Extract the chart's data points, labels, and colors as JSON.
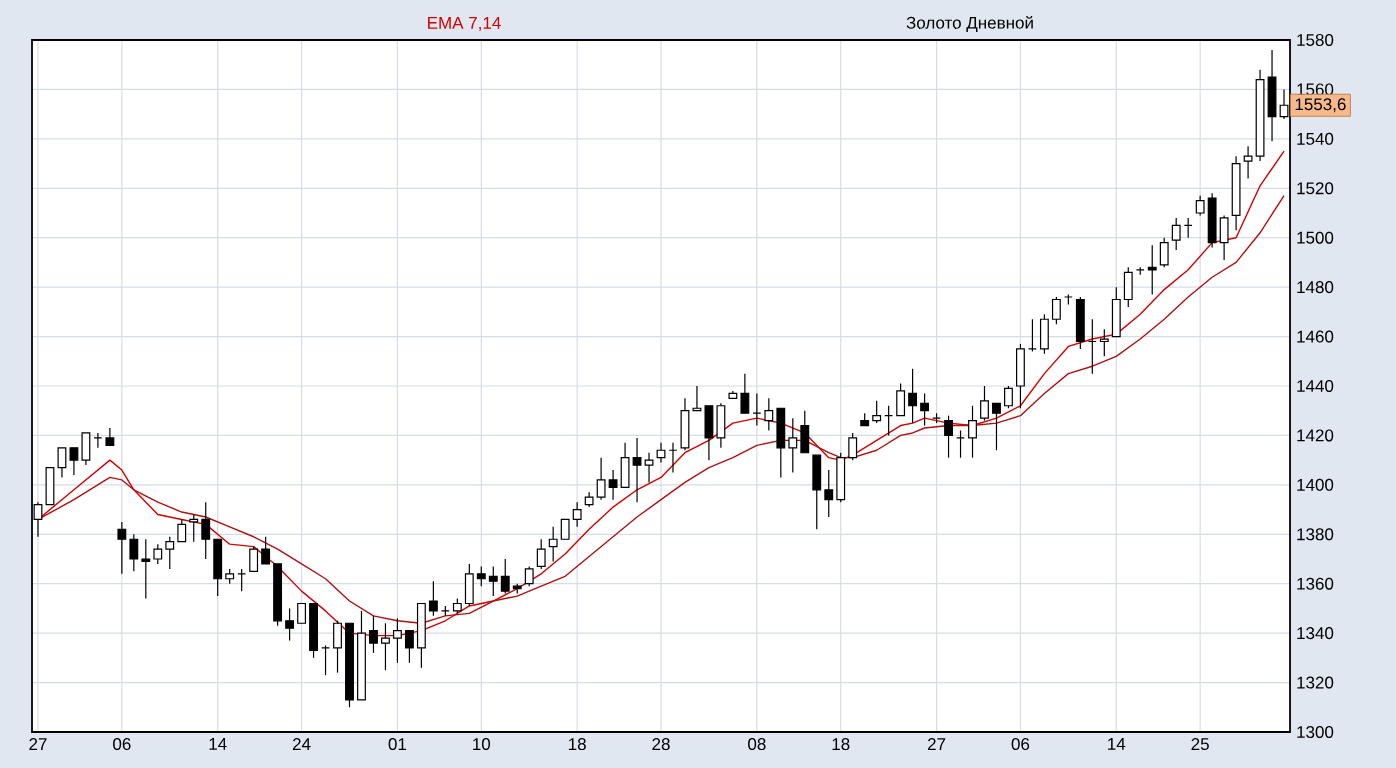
{
  "chart_data": {
    "type": "candlestick",
    "title": "Золото Дневной",
    "subtitle": "EMA 7,14",
    "categories": [
      "27",
      null,
      null,
      null,
      null,
      null,
      null,
      "06",
      null,
      null,
      null,
      null,
      null,
      null,
      null,
      "14",
      null,
      null,
      null,
      null,
      null,
      null,
      "24",
      null,
      null,
      null,
      null,
      null,
      null,
      null,
      "01",
      null,
      null,
      null,
      null,
      null,
      null,
      "10",
      null,
      null,
      null,
      null,
      null,
      null,
      null,
      "18",
      null,
      null,
      null,
      null,
      null,
      null,
      "28",
      null,
      null,
      null,
      null,
      null,
      null,
      null,
      "08",
      null,
      null,
      null,
      null,
      null,
      null,
      "18",
      null,
      null,
      null,
      null,
      null,
      null,
      null,
      "27",
      null,
      null,
      null,
      null,
      null,
      null,
      "06",
      null,
      null,
      null,
      null,
      null,
      null,
      null,
      "14",
      null,
      null,
      null,
      null,
      null,
      null,
      "25",
      null,
      null,
      null,
      null,
      null,
      null,
      null
    ],
    "ohlc": [
      [
        1386,
        1393,
        1379,
        1392
      ],
      [
        1392,
        1407,
        1392,
        1407
      ],
      [
        1407,
        1415,
        1403,
        1415
      ],
      [
        1415,
        1415,
        1404,
        1410
      ],
      [
        1410,
        1421,
        1408,
        1421
      ],
      [
        1419,
        1421,
        1415,
        1419
      ],
      [
        1419,
        1423,
        1416,
        1416
      ],
      [
        1382,
        1385,
        1364,
        1378
      ],
      [
        1378,
        1380,
        1365,
        1370
      ],
      [
        1370,
        1378,
        1354,
        1369
      ],
      [
        1370,
        1376,
        1368,
        1374
      ],
      [
        1374,
        1379,
        1366,
        1377
      ],
      [
        1377,
        1386,
        1377,
        1384
      ],
      [
        1385,
        1388,
        1377,
        1386
      ],
      [
        1386,
        1393,
        1370,
        1378
      ],
      [
        1378,
        1378,
        1355,
        1362
      ],
      [
        1362,
        1366,
        1360,
        1364
      ],
      [
        1364,
        1366,
        1357,
        1364
      ],
      [
        1365,
        1375,
        1365,
        1374
      ],
      [
        1374,
        1379,
        1368,
        1368
      ],
      [
        1368,
        1368,
        1343,
        1345
      ],
      [
        1345,
        1350,
        1337,
        1342
      ],
      [
        1344,
        1352,
        1344,
        1352
      ],
      [
        1352,
        1352,
        1330,
        1333
      ],
      [
        1334,
        1335,
        1323,
        1334
      ],
      [
        1334,
        1345,
        1324,
        1344
      ],
      [
        1344,
        1344,
        1310,
        1313
      ],
      [
        1313,
        1349,
        1313,
        1340
      ],
      [
        1341,
        1347,
        1332,
        1336
      ],
      [
        1336,
        1344,
        1325,
        1338
      ],
      [
        1338,
        1346,
        1328,
        1341
      ],
      [
        1341,
        1341,
        1328,
        1334
      ],
      [
        1334,
        1352,
        1326,
        1352
      ],
      [
        1353,
        1361,
        1347,
        1349
      ],
      [
        1349,
        1351,
        1347,
        1349
      ],
      [
        1349,
        1354,
        1348,
        1352
      ],
      [
        1352,
        1368,
        1351,
        1364
      ],
      [
        1364,
        1367,
        1359,
        1362
      ],
      [
        1363,
        1367,
        1355,
        1361
      ],
      [
        1363,
        1370,
        1356,
        1357
      ],
      [
        1359,
        1360,
        1356,
        1358
      ],
      [
        1360,
        1367,
        1359,
        1366
      ],
      [
        1367,
        1378,
        1366,
        1374
      ],
      [
        1375,
        1383,
        1369,
        1378
      ],
      [
        1378,
        1386,
        1378,
        1386
      ],
      [
        1386,
        1393,
        1383,
        1390
      ],
      [
        1392,
        1397,
        1391,
        1395
      ],
      [
        1395,
        1411,
        1394,
        1402
      ],
      [
        1402,
        1406,
        1394,
        1399
      ],
      [
        1399,
        1417,
        1399,
        1411
      ],
      [
        1411,
        1419,
        1393,
        1408
      ],
      [
        1408,
        1413,
        1401,
        1410
      ],
      [
        1411,
        1417,
        1409,
        1414
      ],
      [
        1414,
        1417,
        1405,
        1414
      ],
      [
        1415,
        1435,
        1414,
        1430
      ],
      [
        1430,
        1440,
        1430,
        1431
      ],
      [
        1432,
        1432,
        1410,
        1419
      ],
      [
        1419,
        1433,
        1415,
        1432
      ],
      [
        1435,
        1438,
        1435,
        1437
      ],
      [
        1437,
        1445,
        1429,
        1429
      ],
      [
        1429,
        1437,
        1424,
        1429
      ],
      [
        1426,
        1435,
        1422,
        1430
      ],
      [
        1431,
        1431,
        1403,
        1415
      ],
      [
        1415,
        1427,
        1405,
        1419
      ],
      [
        1424,
        1430,
        1413,
        1413
      ],
      [
        1412,
        1412,
        1382,
        1398
      ],
      [
        1398,
        1406,
        1387,
        1394
      ],
      [
        1394,
        1413,
        1393,
        1411
      ],
      [
        1411,
        1421,
        1410,
        1419
      ],
      [
        1426,
        1429,
        1424,
        1424
      ],
      [
        1426,
        1434,
        1425,
        1428
      ],
      [
        1428,
        1432,
        1420,
        1428
      ],
      [
        1428,
        1441,
        1428,
        1438
      ],
      [
        1437,
        1447,
        1425,
        1432
      ],
      [
        1433,
        1437,
        1424,
        1430
      ],
      [
        1427,
        1429,
        1425,
        1427
      ],
      [
        1426,
        1428,
        1411,
        1420
      ],
      [
        1419,
        1422,
        1411,
        1419
      ],
      [
        1419,
        1432,
        1411,
        1426
      ],
      [
        1427,
        1440,
        1426,
        1434
      ],
      [
        1433,
        1433,
        1414,
        1429
      ],
      [
        1432,
        1440,
        1431,
        1439
      ],
      [
        1440,
        1457,
        1431,
        1455
      ],
      [
        1455,
        1467,
        1454,
        1455
      ],
      [
        1455,
        1469,
        1453,
        1467
      ],
      [
        1467,
        1476,
        1465,
        1475
      ],
      [
        1476,
        1477,
        1473,
        1476
      ],
      [
        1475,
        1476,
        1455,
        1458
      ],
      [
        1458,
        1467,
        1445,
        1458
      ],
      [
        1458,
        1463,
        1452,
        1459
      ],
      [
        1460,
        1480,
        1460,
        1475
      ],
      [
        1475,
        1488,
        1472,
        1486
      ],
      [
        1487,
        1488,
        1485,
        1487
      ],
      [
        1488,
        1497,
        1477,
        1487
      ],
      [
        1489,
        1500,
        1488,
        1498
      ],
      [
        1499,
        1508,
        1495,
        1505
      ],
      [
        1505,
        1508,
        1500,
        1505
      ],
      [
        1510,
        1517,
        1509,
        1515
      ],
      [
        1516,
        1518,
        1496,
        1498
      ],
      [
        1498,
        1509,
        1491,
        1508
      ],
      [
        1509,
        1533,
        1503,
        1530
      ],
      [
        1531,
        1537,
        1524,
        1533
      ],
      [
        1533,
        1568,
        1531,
        1564
      ],
      [
        1565,
        1576,
        1539,
        1549
      ],
      [
        1549,
        1560,
        1548,
        1553.6
      ]
    ],
    "series": [
      {
        "type": "line",
        "color": "#d40000",
        "values": [
          1386,
          null,
          null,
          1398,
          null,
          null,
          1410,
          1406,
          1398,
          null,
          1388,
          null,
          1386,
          null,
          1384,
          null,
          1376,
          null,
          1375,
          null,
          1367,
          null,
          1357,
          null,
          1349,
          null,
          1340,
          null,
          1339,
          null,
          1339,
          null,
          1341,
          null,
          1345,
          null,
          1351,
          null,
          1353,
          null,
          1358,
          null,
          1364,
          null,
          1372,
          null,
          1382,
          null,
          1391,
          null,
          1398,
          null,
          1403,
          null,
          1413,
          null,
          1418,
          null,
          1425,
          null,
          1427,
          null,
          1425,
          null,
          1421,
          null,
          1411,
          1410,
          1412,
          null,
          1418,
          null,
          1424,
          1425,
          1427,
          null,
          1425,
          null,
          1424,
          null,
          1427,
          null,
          1432,
          null,
          1445,
          null,
          1456,
          null,
          1459,
          null,
          1461,
          null,
          1469,
          null,
          1479,
          null,
          1487,
          null,
          1498,
          null,
          1500,
          null,
          1521,
          null,
          1535
        ]
      },
      {
        "type": "line",
        "color": "#b01010",
        "values": [
          1386,
          null,
          null,
          1394,
          null,
          null,
          1403,
          1402,
          1398,
          null,
          1393,
          null,
          1389,
          null,
          1387,
          null,
          1383,
          null,
          1379,
          null,
          1374,
          null,
          1368,
          null,
          1362,
          null,
          1353,
          null,
          1347,
          null,
          1345,
          null,
          1344,
          null,
          1347,
          null,
          1348,
          null,
          1353,
          null,
          1355,
          null,
          1359,
          null,
          1363,
          null,
          1371,
          null,
          1379,
          null,
          1387,
          null,
          1394,
          null,
          1401,
          null,
          1407,
          null,
          1411,
          null,
          1416,
          null,
          1418,
          null,
          1418,
          null,
          1413,
          1411,
          1411,
          null,
          1414,
          null,
          1420,
          1421,
          1423,
          null,
          1424,
          null,
          1424,
          null,
          1425,
          null,
          1428,
          null,
          1437,
          null,
          1445,
          null,
          1448,
          null,
          1452,
          null,
          1459,
          null,
          1467,
          null,
          1476,
          null,
          1484,
          null,
          1490,
          null,
          1502,
          null,
          1517
        ]
      }
    ],
    "ylim": [
      1300,
      1580
    ],
    "yticks": [
      1300,
      1320,
      1340,
      1360,
      1380,
      1400,
      1420,
      1440,
      1460,
      1480,
      1500,
      1520,
      1540,
      1560,
      1580
    ],
    "grid": true,
    "annotations": [
      {
        "text": "1553,6",
        "y": 1553.6
      }
    ]
  }
}
